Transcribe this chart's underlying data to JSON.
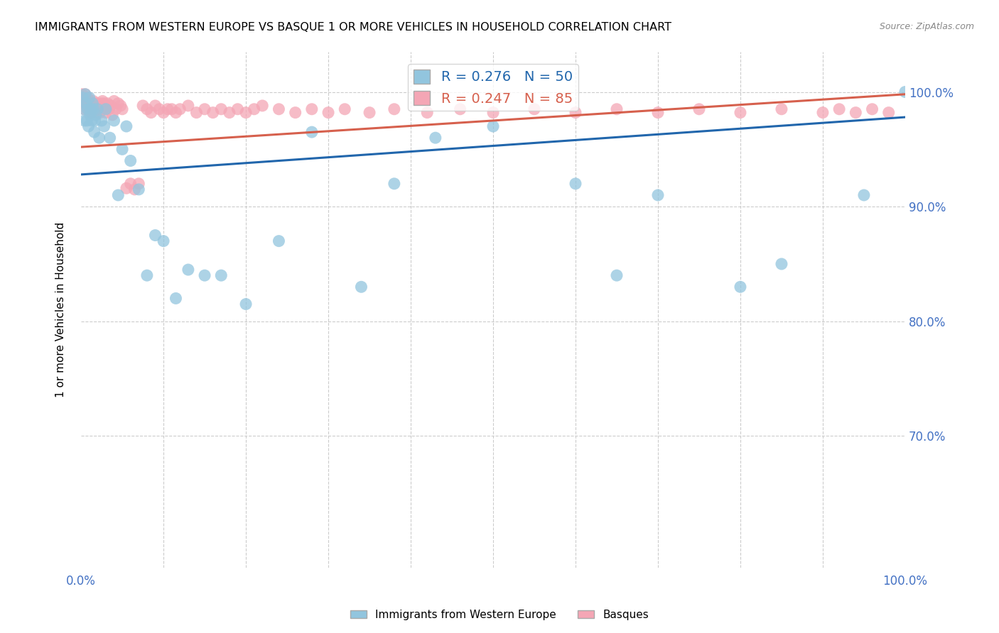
{
  "title": "IMMIGRANTS FROM WESTERN EUROPE VS BASQUE 1 OR MORE VEHICLES IN HOUSEHOLD CORRELATION CHART",
  "source": "Source: ZipAtlas.com",
  "ylabel": "1 or more Vehicles in Household",
  "blue_R": 0.276,
  "blue_N": 50,
  "pink_R": 0.247,
  "pink_N": 85,
  "blue_color": "#92c5de",
  "pink_color": "#f4a6b5",
  "line_blue": "#2166ac",
  "line_pink": "#d6604d",
  "legend_label_blue": "Immigrants from Western Europe",
  "legend_label_pink": "Basques",
  "xlim": [
    0.0,
    1.0
  ],
  "ylim": [
    0.585,
    1.035
  ],
  "ytick_vals": [
    0.7,
    0.8,
    0.9,
    1.0
  ],
  "ytick_labels": [
    "70.0%",
    "80.0%",
    "90.0%",
    "100.0%"
  ],
  "blue_line_x0": 0.0,
  "blue_line_x1": 1.0,
  "blue_line_y0": 0.928,
  "blue_line_y1": 0.978,
  "pink_line_x0": 0.0,
  "pink_line_x1": 1.0,
  "pink_line_y0": 0.952,
  "pink_line_y1": 0.998,
  "blue_scatter_x": [
    0.002,
    0.003,
    0.004,
    0.005,
    0.006,
    0.007,
    0.008,
    0.009,
    0.01,
    0.011,
    0.012,
    0.013,
    0.014,
    0.015,
    0.016,
    0.017,
    0.018,
    0.02,
    0.022,
    0.025,
    0.028,
    0.03,
    0.035,
    0.04,
    0.045,
    0.05,
    0.055,
    0.06,
    0.07,
    0.08,
    0.09,
    0.1,
    0.115,
    0.13,
    0.15,
    0.17,
    0.2,
    0.24,
    0.28,
    0.34,
    0.38,
    0.43,
    0.5,
    0.6,
    0.65,
    0.7,
    0.8,
    0.85,
    0.95,
    1.0
  ],
  "blue_scatter_y": [
    0.995,
    0.985,
    0.975,
    0.998,
    0.99,
    0.975,
    0.985,
    0.97,
    0.995,
    0.98,
    0.985,
    0.975,
    0.99,
    0.985,
    0.965,
    0.975,
    0.98,
    0.985,
    0.96,
    0.975,
    0.97,
    0.985,
    0.96,
    0.975,
    0.91,
    0.95,
    0.97,
    0.94,
    0.915,
    0.84,
    0.875,
    0.87,
    0.82,
    0.845,
    0.84,
    0.84,
    0.815,
    0.87,
    0.965,
    0.83,
    0.92,
    0.96,
    0.97,
    0.92,
    0.84,
    0.91,
    0.83,
    0.85,
    0.91,
    1.0
  ],
  "pink_scatter_x": [
    0.001,
    0.002,
    0.003,
    0.004,
    0.005,
    0.006,
    0.007,
    0.008,
    0.009,
    0.01,
    0.011,
    0.012,
    0.013,
    0.014,
    0.015,
    0.016,
    0.017,
    0.018,
    0.019,
    0.02,
    0.021,
    0.022,
    0.023,
    0.024,
    0.025,
    0.026,
    0.027,
    0.028,
    0.029,
    0.03,
    0.032,
    0.034,
    0.036,
    0.038,
    0.04,
    0.042,
    0.045,
    0.048,
    0.05,
    0.055,
    0.06,
    0.065,
    0.07,
    0.075,
    0.08,
    0.085,
    0.09,
    0.095,
    0.1,
    0.105,
    0.11,
    0.115,
    0.12,
    0.13,
    0.14,
    0.15,
    0.16,
    0.17,
    0.18,
    0.19,
    0.2,
    0.21,
    0.22,
    0.24,
    0.26,
    0.28,
    0.3,
    0.32,
    0.35,
    0.38,
    0.42,
    0.46,
    0.5,
    0.55,
    0.6,
    0.65,
    0.7,
    0.75,
    0.8,
    0.85,
    0.9,
    0.92,
    0.94,
    0.96,
    0.98
  ],
  "pink_scatter_y": [
    0.998,
    0.995,
    0.99,
    0.985,
    0.998,
    0.992,
    0.988,
    0.995,
    0.985,
    0.992,
    0.988,
    0.982,
    0.99,
    0.986,
    0.992,
    0.985,
    0.99,
    0.988,
    0.982,
    0.99,
    0.985,
    0.988,
    0.982,
    0.99,
    0.988,
    0.992,
    0.985,
    0.99,
    0.988,
    0.982,
    0.99,
    0.985,
    0.988,
    0.98,
    0.992,
    0.985,
    0.99,
    0.988,
    0.985,
    0.916,
    0.92,
    0.915,
    0.92,
    0.988,
    0.985,
    0.982,
    0.988,
    0.985,
    0.982,
    0.985,
    0.985,
    0.982,
    0.985,
    0.988,
    0.982,
    0.985,
    0.982,
    0.985,
    0.982,
    0.985,
    0.982,
    0.985,
    0.988,
    0.985,
    0.982,
    0.985,
    0.982,
    0.985,
    0.982,
    0.985,
    0.982,
    0.985,
    0.982,
    0.985,
    0.982,
    0.985,
    0.982,
    0.985,
    0.982,
    0.985,
    0.982,
    0.985,
    0.982,
    0.985,
    0.982
  ]
}
